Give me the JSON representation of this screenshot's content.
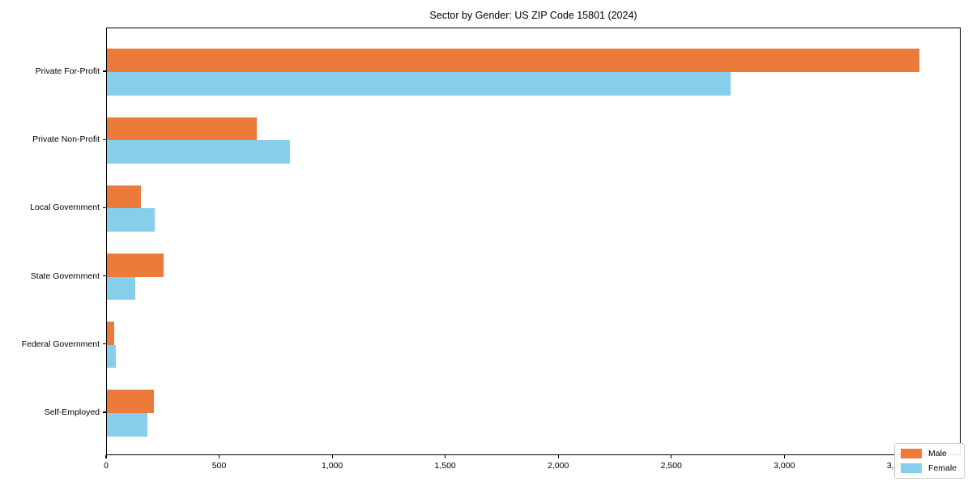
{
  "chart_data": {
    "type": "bar",
    "orientation": "horizontal",
    "title": "Sector by Gender: US ZIP Code 15801 (2024)",
    "categories": [
      "Private For-Profit",
      "Private Non-Profit",
      "Local Government",
      "State Government",
      "Federal Government",
      "Self-Employed"
    ],
    "series": [
      {
        "name": "Male",
        "color": "#ec7a3b",
        "values": [
          3600,
          665,
          152,
          252,
          31,
          208
        ]
      },
      {
        "name": "Female",
        "color": "#87ceeb",
        "values": [
          2765,
          810,
          210,
          124,
          38,
          179
        ]
      }
    ],
    "xlabel": "",
    "ylabel": "",
    "xlim": [
      0,
      3780
    ],
    "xticks": [
      0,
      500,
      1000,
      1500,
      2000,
      2500,
      3000,
      3500
    ],
    "xtick_labels": [
      "0",
      "500",
      "1,000",
      "1,500",
      "2,000",
      "2,500",
      "3,000",
      "3,500"
    ],
    "grid": false,
    "legend_position": "lower right"
  }
}
